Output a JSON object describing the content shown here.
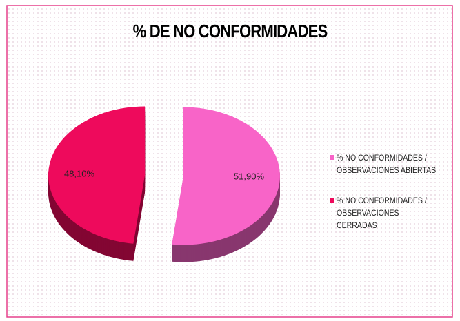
{
  "chart_data": {
    "type": "pie3d",
    "title": "% DE NO CONFORMIDADES",
    "categories": [
      "% NO CONFORMIDADES / OBSERVACIONES ABIERTAS",
      "% NO CONFORMIDADES / OBSERVACIONES CERRADAS"
    ],
    "values": [
      51.9,
      48.1
    ],
    "value_labels": [
      "51,90%",
      "48,10%"
    ],
    "colors": [
      "#f864c8",
      "#ee0a5c"
    ],
    "legend": "right"
  }
}
